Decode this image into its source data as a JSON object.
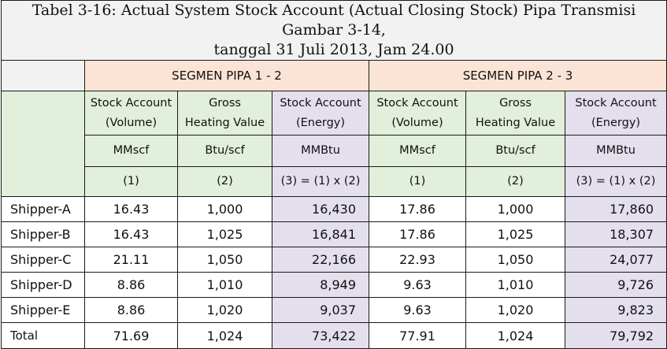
{
  "caption": {
    "line1": "Tabel 3-16: Actual System Stock Account (Actual Closing Stock) Pipa Transmisi Gambar 3-14,",
    "line2": "tanggal 31 Juli 2013, Jam 24.00"
  },
  "segments": [
    "SEGMEN PIPA 1 - 2",
    "SEGMEN PIPA 2 - 3"
  ],
  "columns": {
    "volume": {
      "line1": "Stock Account",
      "line2": "(Volume)",
      "unit": "MMscf",
      "index": "(1)"
    },
    "ghv": {
      "line1": "Gross",
      "line2": "Heating Value",
      "unit": "Btu/scf",
      "index": "(2)"
    },
    "energy": {
      "line1": "Stock Account",
      "line2": "(Energy)",
      "unit": "MMBtu",
      "index": "(3) = (1) x (2)"
    }
  },
  "rows": [
    {
      "name": "Shipper-A",
      "s1": [
        "16.43",
        "1,000",
        "16,430"
      ],
      "s2": [
        "17.86",
        "1,000",
        "17,860"
      ]
    },
    {
      "name": "Shipper-B",
      "s1": [
        "16.43",
        "1,025",
        "16,841"
      ],
      "s2": [
        "17.86",
        "1,025",
        "18,307"
      ]
    },
    {
      "name": "Shipper-C",
      "s1": [
        "21.11",
        "1,050",
        "22,166"
      ],
      "s2": [
        "22.93",
        "1,050",
        "24,077"
      ]
    },
    {
      "name": "Shipper-D",
      "s1": [
        "8.86",
        "1,010",
        "8,949"
      ],
      "s2": [
        "9.63",
        "1,010",
        "9,726"
      ]
    },
    {
      "name": "Shipper-E",
      "s1": [
        "8.86",
        "1,020",
        "9,037"
      ],
      "s2": [
        "9.63",
        "1,020",
        "9,823"
      ]
    }
  ],
  "total": {
    "name": "Total",
    "s1": [
      "71.69",
      "1,024",
      "73,422"
    ],
    "s2": [
      "77.91",
      "1,024",
      "79,792"
    ]
  },
  "colors": {
    "segment_header": "#fbe4d5",
    "column_header": "#e2efda",
    "energy_column": "#e4dfec",
    "caption_bg": "#f2f2f2"
  }
}
